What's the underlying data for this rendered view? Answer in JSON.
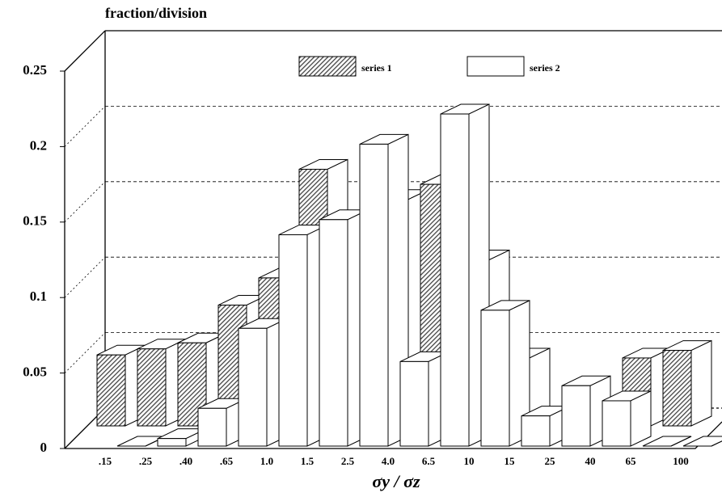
{
  "chart_data": {
    "type": "bar3d",
    "y_label": "fraction/division",
    "x_label": "σy / σz",
    "categories": [
      ".15",
      ".25",
      ".40",
      ".65",
      "1.0",
      "1.5",
      "2.5",
      "4.0",
      "6.5",
      "10",
      "15",
      "25",
      "40",
      "65",
      "100"
    ],
    "series": [
      {
        "name": "series 1",
        "color": "#444444",
        "values": [
          0.047,
          0.051,
          0.055,
          0.08,
          0.098,
          0.17,
          0.13,
          0.15,
          0.16,
          0.11,
          0.045,
          0.005,
          0.005,
          0.045,
          0.05
        ]
      },
      {
        "name": "series 2",
        "color": "#ffffff",
        "values": [
          0,
          0.005,
          0.025,
          0.078,
          0.14,
          0.15,
          0.2,
          0.056,
          0.22,
          0.09,
          0.02,
          0.04,
          0.03,
          0,
          0
        ]
      }
    ],
    "ylim": [
      0,
      0.25
    ],
    "yticks": [
      0,
      0.05,
      0.1,
      0.15,
      0.2,
      0.25
    ],
    "grid": true
  }
}
